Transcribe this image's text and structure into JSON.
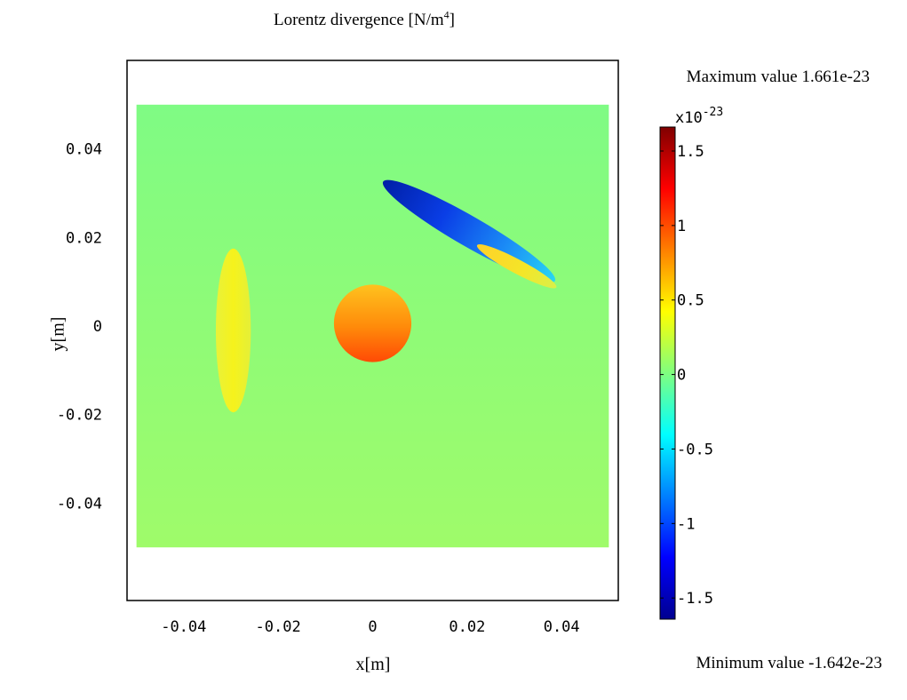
{
  "chart_data": {
    "type": "heatmap",
    "title": "Lorentz divergence [N/m",
    "title_superscript": "4",
    "title_suffix": "]",
    "xlabel": "x[m]",
    "ylabel": "y[m]",
    "xlim": [
      -0.052,
      0.052
    ],
    "ylim": [
      -0.062,
      0.06
    ],
    "domain": {
      "x": [
        -0.05,
        0.05
      ],
      "y": [
        -0.05,
        0.05
      ]
    },
    "background_value": 0.0,
    "x_ticks": [
      {
        "value": -0.04,
        "label": "-0.04"
      },
      {
        "value": -0.02,
        "label": "-0.02"
      },
      {
        "value": 0,
        "label": "0"
      },
      {
        "value": 0.02,
        "label": "0.02"
      },
      {
        "value": 0.04,
        "label": "0.04"
      }
    ],
    "y_ticks": [
      {
        "value": 0.04,
        "label": "0.04"
      },
      {
        "value": 0.02,
        "label": "0.02"
      },
      {
        "value": 0,
        "label": "0"
      },
      {
        "value": -0.02,
        "label": "-0.02"
      },
      {
        "value": -0.04,
        "label": "-0.04"
      }
    ],
    "features": [
      {
        "name": "disk",
        "shape": "circle",
        "center": [
          0.0,
          0.0006
        ],
        "radius": 0.0082,
        "value_top": 0.75,
        "value_bottom": 1.2
      },
      {
        "name": "left-ellipse",
        "shape": "ellipse",
        "center": [
          -0.0295,
          -0.001
        ],
        "semi_axes": [
          0.0037,
          0.0185
        ],
        "angle_deg": 0,
        "value": 0.55
      },
      {
        "name": "upper-blade",
        "shape": "ellipse",
        "center": [
          0.0204,
          0.0214
        ],
        "semi_axes": [
          0.021,
          0.0034
        ],
        "angle_deg": -30,
        "value_start": -1.55,
        "value_end": -0.4
      },
      {
        "name": "lower-blade",
        "shape": "ellipse",
        "center": [
          0.0305,
          0.0135
        ],
        "semi_axes": [
          0.0095,
          0.0016
        ],
        "angle_deg": -28,
        "value": 0.65
      }
    ],
    "colorbar": {
      "colormap": "jet",
      "range": [
        -1.642,
        1.661
      ],
      "exponent_label": "x10",
      "exponent": "-23",
      "ticks": [
        {
          "value": 1.5,
          "label": "1.5"
        },
        {
          "value": 1,
          "label": "1"
        },
        {
          "value": 0.5,
          "label": "0.5"
        },
        {
          "value": 0,
          "label": "0"
        },
        {
          "value": -0.5,
          "label": "-0.5"
        },
        {
          "value": -1,
          "label": "-1"
        },
        {
          "value": -1.5,
          "label": "-1.5"
        }
      ]
    },
    "max_label": "Maximum value 1.661e-23",
    "min_label": "Minimum value -1.642e-23",
    "grid": false
  }
}
